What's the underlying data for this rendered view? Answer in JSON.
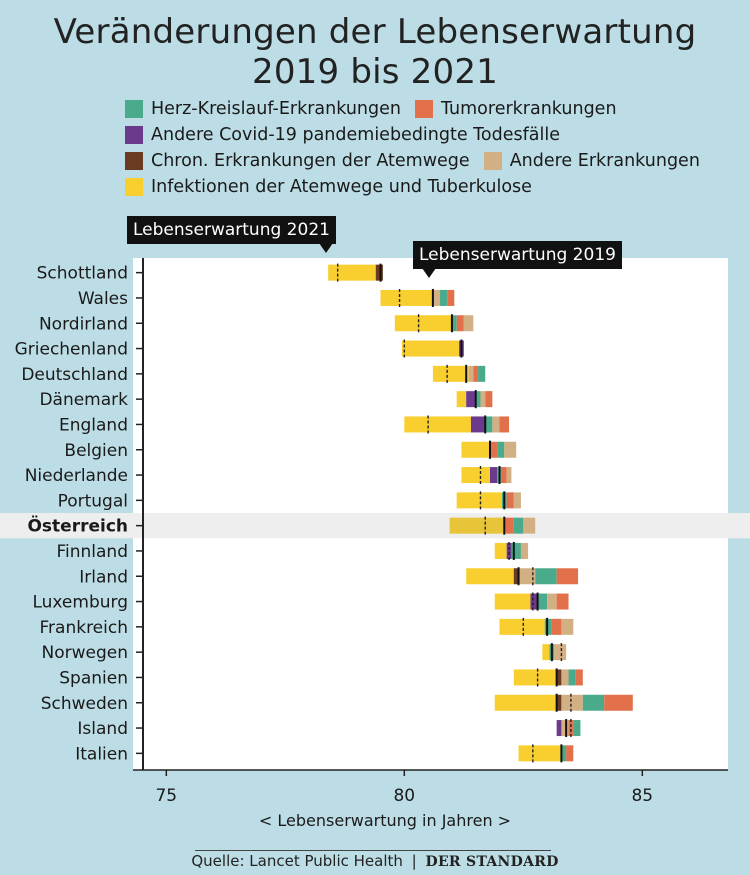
{
  "chart_data": {
    "type": "bar",
    "title": [
      "Veränderungen der Lebenserwartung",
      "2019 bis 2021"
    ],
    "xlabel": "< Lebenserwartung in Jahren >",
    "xlim": [
      74.3,
      86.8
    ],
    "xticks": [
      75,
      80,
      85
    ],
    "annotations": {
      "le2021": "Lebenserwartung 2021",
      "le2019": "Lebenserwartung 2019"
    },
    "legend": [
      {
        "key": "herz",
        "label": "Herz-Kreislauf-Erkrankungen",
        "color": "#4aab8c"
      },
      {
        "key": "tumor",
        "label": "Tumorerkrankungen",
        "color": "#e2704a"
      },
      {
        "key": "covid",
        "label": "Andere Covid-19 pandemiebedingte Todesfälle",
        "color": "#6b3a8c"
      },
      {
        "key": "atem",
        "label": "Chron. Erkrankungen der Atemwege",
        "color": "#6a3a22"
      },
      {
        "key": "andere",
        "label": "Andere Erkrankungen",
        "color": "#d3b084"
      },
      {
        "key": "infekt",
        "label": "Infektionen der Atemwege und Tuberkulose",
        "color": "#f8cf2e"
      }
    ],
    "highlight": "Österreich",
    "countries": [
      {
        "name": "Schottland",
        "le2021": 78.6,
        "le2019": 79.5,
        "segments": [
          {
            "key": "infekt",
            "from": 78.4,
            "to": 79.4
          },
          {
            "key": "atem",
            "from": 79.4,
            "to": 79.55
          }
        ]
      },
      {
        "name": "Wales",
        "le2021": 79.9,
        "le2019": 80.6,
        "segments": [
          {
            "key": "infekt",
            "from": 79.5,
            "to": 80.6
          },
          {
            "key": "andere",
            "from": 80.6,
            "to": 80.75
          },
          {
            "key": "herz",
            "from": 80.75,
            "to": 80.9
          },
          {
            "key": "tumor",
            "from": 80.9,
            "to": 81.05
          }
        ]
      },
      {
        "name": "Nordirland",
        "le2021": 80.3,
        "le2019": 81.0,
        "segments": [
          {
            "key": "infekt",
            "from": 79.8,
            "to": 81.0
          },
          {
            "key": "herz",
            "from": 81.0,
            "to": 81.1
          },
          {
            "key": "tumor",
            "from": 81.1,
            "to": 81.25
          },
          {
            "key": "andere",
            "from": 81.25,
            "to": 81.45
          }
        ]
      },
      {
        "name": "Griechenland",
        "le2021": 80.0,
        "le2019": 81.2,
        "segments": [
          {
            "key": "infekt",
            "from": 79.95,
            "to": 81.15
          },
          {
            "key": "covid",
            "from": 81.15,
            "to": 81.25
          }
        ]
      },
      {
        "name": "Deutschland",
        "le2021": 80.9,
        "le2019": 81.3,
        "segments": [
          {
            "key": "infekt",
            "from": 80.6,
            "to": 81.35
          },
          {
            "key": "andere",
            "from": 81.35,
            "to": 81.45
          },
          {
            "key": "tumor",
            "from": 81.45,
            "to": 81.55
          },
          {
            "key": "herz",
            "from": 81.55,
            "to": 81.7
          }
        ]
      },
      {
        "name": "Dänemark",
        "le2021": 81.5,
        "le2019": 81.5,
        "segments": [
          {
            "key": "infekt",
            "from": 81.1,
            "to": 81.3
          },
          {
            "key": "covid",
            "from": 81.3,
            "to": 81.5
          },
          {
            "key": "herz",
            "from": 81.5,
            "to": 81.6
          },
          {
            "key": "andere",
            "from": 81.6,
            "to": 81.7
          },
          {
            "key": "tumor",
            "from": 81.7,
            "to": 81.85
          }
        ]
      },
      {
        "name": "England",
        "le2021": 80.5,
        "le2019": 81.7,
        "segments": [
          {
            "key": "infekt",
            "from": 80.0,
            "to": 81.4
          },
          {
            "key": "covid",
            "from": 81.4,
            "to": 81.7
          },
          {
            "key": "herz",
            "from": 81.7,
            "to": 81.85
          },
          {
            "key": "andere",
            "from": 81.85,
            "to": 82.0
          },
          {
            "key": "tumor",
            "from": 82.0,
            "to": 82.2
          }
        ]
      },
      {
        "name": "Belgien",
        "le2021": 81.8,
        "le2019": 81.8,
        "segments": [
          {
            "key": "infekt",
            "from": 81.2,
            "to": 81.8
          },
          {
            "key": "tumor",
            "from": 81.8,
            "to": 81.95
          },
          {
            "key": "herz",
            "from": 81.95,
            "to": 82.1
          },
          {
            "key": "andere",
            "from": 82.1,
            "to": 82.35
          }
        ]
      },
      {
        "name": "Niederlande",
        "le2021": 81.6,
        "le2019": 82.0,
        "segments": [
          {
            "key": "infekt",
            "from": 81.2,
            "to": 81.8
          },
          {
            "key": "covid",
            "from": 81.8,
            "to": 81.95
          },
          {
            "key": "herz",
            "from": 81.95,
            "to": 82.05
          },
          {
            "key": "tumor",
            "from": 82.05,
            "to": 82.15
          },
          {
            "key": "andere",
            "from": 82.15,
            "to": 82.25
          }
        ]
      },
      {
        "name": "Portugal",
        "le2021": 81.6,
        "le2019": 82.1,
        "segments": [
          {
            "key": "infekt",
            "from": 81.1,
            "to": 82.05
          },
          {
            "key": "herz",
            "from": 82.05,
            "to": 82.15
          },
          {
            "key": "tumor",
            "from": 82.15,
            "to": 82.3
          },
          {
            "key": "andere",
            "from": 82.3,
            "to": 82.45
          }
        ]
      },
      {
        "name": "Österreich",
        "le2021": 81.7,
        "le2019": 82.1,
        "segments": [
          {
            "key": "infekt",
            "from": 80.95,
            "to": 82.1
          },
          {
            "key": "tumor",
            "from": 82.1,
            "to": 82.3
          },
          {
            "key": "herz",
            "from": 82.3,
            "to": 82.5
          },
          {
            "key": "andere",
            "from": 82.5,
            "to": 82.75
          }
        ]
      },
      {
        "name": "Finnland",
        "le2021": 82.2,
        "le2019": 82.3,
        "segments": [
          {
            "key": "infekt",
            "from": 81.9,
            "to": 82.15
          },
          {
            "key": "covid",
            "from": 82.15,
            "to": 82.25
          },
          {
            "key": "herz",
            "from": 82.25,
            "to": 82.45
          },
          {
            "key": "andere",
            "from": 82.45,
            "to": 82.6
          }
        ]
      },
      {
        "name": "Irland",
        "le2021": 82.7,
        "le2019": 82.4,
        "segments": [
          {
            "key": "infekt",
            "from": 81.3,
            "to": 82.3
          },
          {
            "key": "atem",
            "from": 82.3,
            "to": 82.4
          },
          {
            "key": "andere",
            "from": 82.4,
            "to": 82.75
          },
          {
            "key": "herz",
            "from": 82.75,
            "to": 83.2
          },
          {
            "key": "tumor",
            "from": 83.2,
            "to": 83.65
          }
        ]
      },
      {
        "name": "Luxemburg",
        "le2021": 82.7,
        "le2019": 82.8,
        "segments": [
          {
            "key": "infekt",
            "from": 81.9,
            "to": 82.65
          },
          {
            "key": "covid",
            "from": 82.65,
            "to": 82.8
          },
          {
            "key": "herz",
            "from": 82.8,
            "to": 83.0
          },
          {
            "key": "andere",
            "from": 83.0,
            "to": 83.2
          },
          {
            "key": "tumor",
            "from": 83.2,
            "to": 83.45
          }
        ]
      },
      {
        "name": "Frankreich",
        "le2021": 82.5,
        "le2019": 83.0,
        "segments": [
          {
            "key": "infekt",
            "from": 82.0,
            "to": 82.95
          },
          {
            "key": "herz",
            "from": 82.95,
            "to": 83.1
          },
          {
            "key": "tumor",
            "from": 83.1,
            "to": 83.3
          },
          {
            "key": "andere",
            "from": 83.3,
            "to": 83.55
          }
        ]
      },
      {
        "name": "Norwegen",
        "le2021": 83.3,
        "le2019": 83.1,
        "segments": [
          {
            "key": "infekt",
            "from": 82.9,
            "to": 83.05
          },
          {
            "key": "herz",
            "from": 83.05,
            "to": 83.15
          },
          {
            "key": "andere",
            "from": 83.15,
            "to": 83.4
          }
        ]
      },
      {
        "name": "Spanien",
        "le2021": 82.8,
        "le2019": 83.2,
        "segments": [
          {
            "key": "infekt",
            "from": 82.3,
            "to": 83.2
          },
          {
            "key": "atem",
            "from": 83.2,
            "to": 83.3
          },
          {
            "key": "andere",
            "from": 83.3,
            "to": 83.45
          },
          {
            "key": "herz",
            "from": 83.45,
            "to": 83.6
          },
          {
            "key": "tumor",
            "from": 83.6,
            "to": 83.75
          }
        ]
      },
      {
        "name": "Schweden",
        "le2021": 83.5,
        "le2019": 83.2,
        "segments": [
          {
            "key": "infekt",
            "from": 81.9,
            "to": 83.2
          },
          {
            "key": "atem",
            "from": 83.2,
            "to": 83.3
          },
          {
            "key": "andere",
            "from": 83.3,
            "to": 83.75
          },
          {
            "key": "herz",
            "from": 83.75,
            "to": 84.2
          },
          {
            "key": "tumor",
            "from": 84.2,
            "to": 84.8
          }
        ]
      },
      {
        "name": "Island",
        "le2021": 83.5,
        "le2019": 83.4,
        "segments": [
          {
            "key": "covid",
            "from": 83.2,
            "to": 83.3
          },
          {
            "key": "andere",
            "from": 83.3,
            "to": 83.45
          },
          {
            "key": "tumor",
            "from": 83.45,
            "to": 83.55
          },
          {
            "key": "herz",
            "from": 83.55,
            "to": 83.7
          }
        ]
      },
      {
        "name": "Italien",
        "le2021": 82.7,
        "le2019": 83.3,
        "segments": [
          {
            "key": "infekt",
            "from": 82.4,
            "to": 83.3
          },
          {
            "key": "herz",
            "from": 83.3,
            "to": 83.4
          },
          {
            "key": "tumor",
            "from": 83.4,
            "to": 83.55
          }
        ]
      }
    ]
  },
  "footer": {
    "source": "Quelle: Lancet Public Health",
    "separator": "|",
    "brand": "DER STANDARD"
  }
}
